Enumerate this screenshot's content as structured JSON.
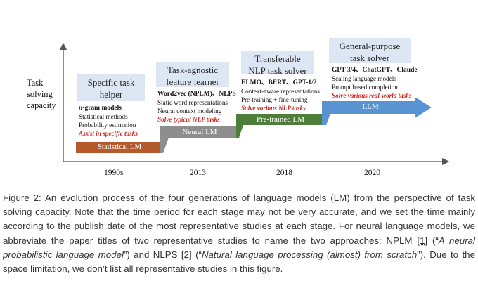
{
  "figure": {
    "y_axis_label": [
      "Task",
      "solving",
      "capacity"
    ],
    "x_ticks": [
      "1990s",
      "2013",
      "2018",
      "2020"
    ],
    "stages": [
      {
        "title": [
          "Specific task",
          "helper"
        ],
        "header": "n-gram models",
        "items": [
          "Statistical methods",
          "Probability estimation"
        ],
        "highlight": "Assist in specific tasks",
        "bar_label": "Statistical LM",
        "color": "#b55a2b"
      },
      {
        "title": [
          "Task-agnostic",
          "feature learner"
        ],
        "header": "Word2vec (NPLM)、NLPS",
        "items": [
          "Static word representations",
          "Neural context modeling"
        ],
        "highlight": "Solve typical NLP tasks",
        "bar_label": "Neural LM",
        "color": "#8e8e8e"
      },
      {
        "title": [
          "Transferable",
          "NLP task solver"
        ],
        "header": "ELMO、BERT、GPT-1/2",
        "items": [
          "Context-aware representations",
          "Pre-training + fine-tuning"
        ],
        "highlight": "Solve various NLP tasks",
        "bar_label": "Pre-trained LM",
        "color": "#4f7e3b"
      },
      {
        "title": [
          "General-purpose",
          "task solver"
        ],
        "header": "GPT-3/4、ChatGPT、Claude",
        "items": [
          "Scaling language models",
          "Prompt based completion"
        ],
        "highlight": "Solve various real-world tasks",
        "bar_label": "LLM",
        "color": "#5a93d1"
      }
    ]
  },
  "caption": {
    "label": "Figure 2:",
    "text1": " An evolution process of the four generations of language models (LM) from the perspective of task solving capacity. Note that the time period for each stage may not be very accurate, and we set the time mainly according to the publish date of the most representative studies at each stage. For neural language models, we abbreviate the paper titles of two representative studies to name the two approaches: NPLM ",
    "ref1": "[1]",
    "text2": " (“",
    "title1": "A neural probabilistic language model",
    "text3": "”) and NLPS ",
    "ref2": "[2]",
    "text4": " (“",
    "title2": "Natural language processing (almost) from scratch",
    "text5": "”). Due to the space limitation, we don’t list all representative studies in this figure."
  }
}
